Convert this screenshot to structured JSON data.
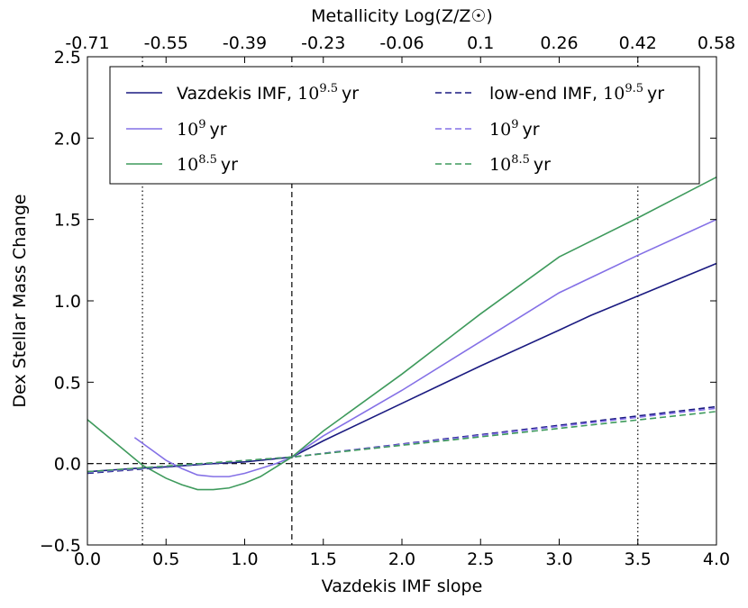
{
  "chart_data": {
    "type": "line",
    "xlabel": "Vazdekis IMF slope",
    "ylabel": "Dex Stellar Mass Change",
    "top_xlabel": "Metallicity Log(Z/Z☉)",
    "xlim": [
      0.0,
      4.0
    ],
    "ylim": [
      -0.5,
      2.5
    ],
    "x_ticks": [
      0.0,
      0.5,
      1.0,
      1.5,
      2.0,
      2.5,
      3.0,
      3.5,
      4.0
    ],
    "x_tick_labels": [
      "0.0",
      "0.5",
      "1.0",
      "1.5",
      "2.0",
      "2.5",
      "3.0",
      "3.5",
      "4.0"
    ],
    "y_ticks": [
      -0.5,
      0.0,
      0.5,
      1.0,
      1.5,
      2.0,
      2.5
    ],
    "y_tick_labels": [
      "−0.5",
      "0.0",
      "0.5",
      "1.0",
      "1.5",
      "2.0",
      "2.5"
    ],
    "top_ticks": [
      0.0,
      0.5,
      1.0,
      1.5,
      2.0,
      2.5,
      3.0,
      3.5,
      4.0
    ],
    "top_tick_labels": [
      "-0.71",
      "-0.55",
      "-0.39",
      "-0.23",
      "-0.06",
      "0.1",
      "0.26",
      "0.42",
      "0.58"
    ],
    "vertical_lines": [
      {
        "x": 0.35,
        "style": "dotted"
      },
      {
        "x": 1.3,
        "style": "dashed"
      },
      {
        "x": 3.5,
        "style": "dotted"
      }
    ],
    "horizontal_lines": [
      {
        "y": 0.0,
        "style": "dashed"
      }
    ],
    "legend_position": "top",
    "series": [
      {
        "name": "Vazdekis IMF, 10^9.5 yr",
        "color": "#1a1a80",
        "style": "solid",
        "x": [
          0.0,
          0.3,
          0.5,
          0.8,
          1.0,
          1.3,
          1.5,
          2.0,
          2.5,
          3.0,
          3.2,
          3.5,
          4.0
        ],
        "y": [
          -0.05,
          -0.03,
          -0.02,
          0.0,
          0.01,
          0.04,
          0.14,
          0.37,
          0.6,
          0.82,
          0.91,
          1.03,
          1.23
        ]
      },
      {
        "name": "10^9 yr",
        "color": "#8470e6",
        "style": "solid",
        "x": [
          0.3,
          0.4,
          0.5,
          0.6,
          0.7,
          0.8,
          0.9,
          1.0,
          1.1,
          1.2,
          1.3,
          1.5,
          2.0,
          2.5,
          3.0,
          3.5,
          4.0
        ],
        "y": [
          0.16,
          0.09,
          0.02,
          -0.03,
          -0.07,
          -0.08,
          -0.08,
          -0.06,
          -0.03,
          0.0,
          0.04,
          0.17,
          0.45,
          0.75,
          1.05,
          1.28,
          1.5
        ]
      },
      {
        "name": "10^8.5 yr",
        "color": "#3e9a5c",
        "style": "solid",
        "x": [
          0.0,
          0.2,
          0.35,
          0.5,
          0.6,
          0.7,
          0.8,
          0.9,
          1.0,
          1.1,
          1.2,
          1.3,
          1.5,
          2.0,
          2.5,
          3.0,
          3.5,
          4.0
        ],
        "y": [
          0.27,
          0.11,
          -0.01,
          -0.09,
          -0.13,
          -0.16,
          -0.16,
          -0.15,
          -0.12,
          -0.08,
          -0.02,
          0.04,
          0.2,
          0.55,
          0.92,
          1.27,
          1.51,
          1.76
        ]
      },
      {
        "name": "low-end IMF, 10^9.5 yr",
        "color": "#1a1a80",
        "style": "dashed",
        "x": [
          0.0,
          1.3,
          4.0
        ],
        "y": [
          -0.06,
          0.04,
          0.35
        ]
      },
      {
        "name": "10^9 yr",
        "color": "#8470e6",
        "style": "dashed",
        "x": [
          0.0,
          1.3,
          4.0
        ],
        "y": [
          -0.055,
          0.04,
          0.34
        ]
      },
      {
        "name": "10^8.5 yr",
        "color": "#3e9a5c",
        "style": "dashed",
        "x": [
          0.0,
          1.3,
          4.0
        ],
        "y": [
          -0.05,
          0.04,
          0.32
        ]
      }
    ],
    "legend": [
      {
        "prefix": "Vazdekis IMF, ",
        "base": "10",
        "exp": "9.5",
        "unit": "yr",
        "series": 0
      },
      {
        "prefix": "",
        "base": "10",
        "exp": "9",
        "unit": "yr",
        "series": 1
      },
      {
        "prefix": "",
        "base": "10",
        "exp": "8.5",
        "unit": "yr",
        "series": 2
      },
      {
        "prefix": "low-end IMF, ",
        "base": "10",
        "exp": "9.5",
        "unit": "yr",
        "series": 3
      },
      {
        "prefix": "",
        "base": "10",
        "exp": "9",
        "unit": "yr",
        "series": 4
      },
      {
        "prefix": "",
        "base": "10",
        "exp": "8.5",
        "unit": "yr",
        "series": 5
      }
    ]
  }
}
